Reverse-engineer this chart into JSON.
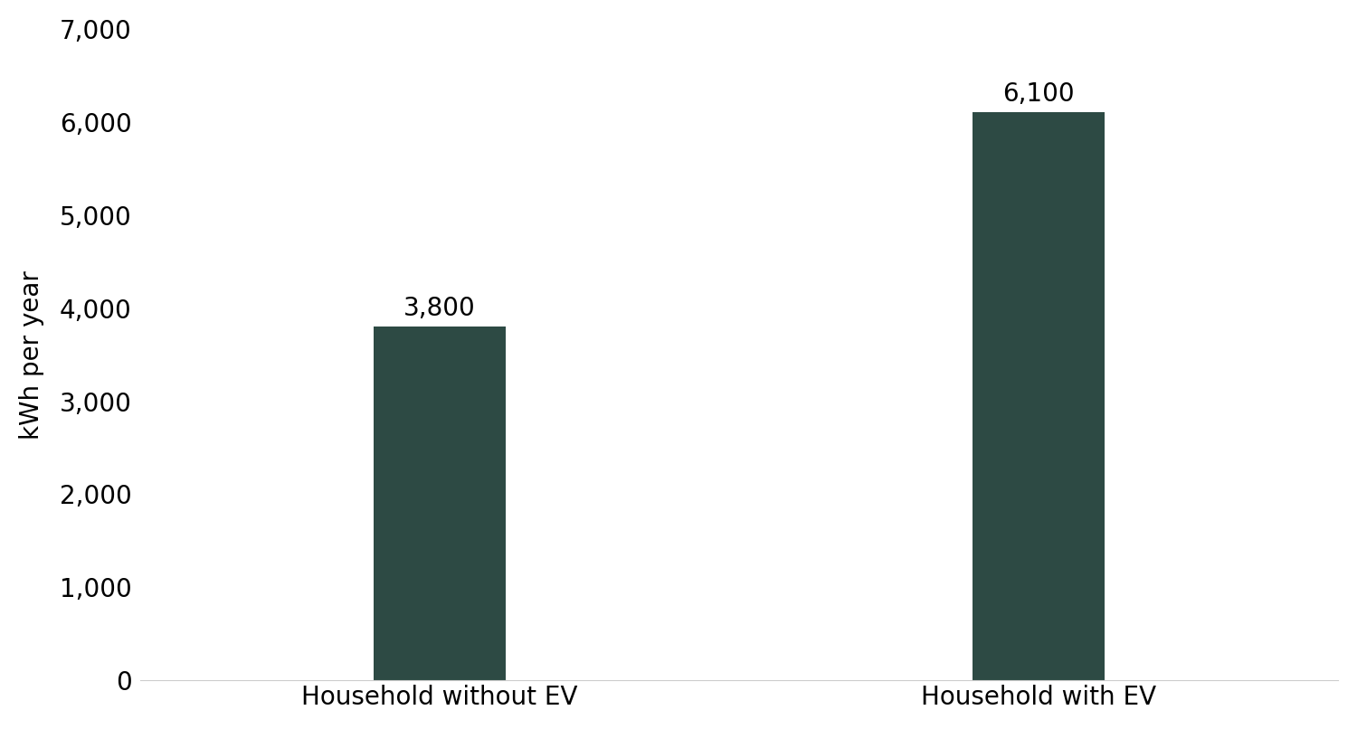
{
  "categories": [
    "Household without EV",
    "Household with EV"
  ],
  "values": [
    3800,
    6100
  ],
  "bar_color": "#2d4a44",
  "bar_labels": [
    "3,800",
    "6,100"
  ],
  "ylabel": "kWh per year",
  "ylim": [
    0,
    7000
  ],
  "yticks": [
    0,
    1000,
    2000,
    3000,
    4000,
    5000,
    6000,
    7000
  ],
  "bar_width": 0.22,
  "label_fontsize": 20,
  "tick_fontsize": 20,
  "ylabel_fontsize": 20,
  "background_color": "#ffffff",
  "annotation_fontsize": 20
}
